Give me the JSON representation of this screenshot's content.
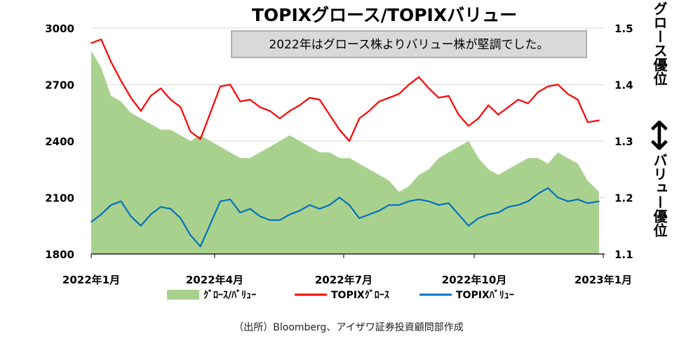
{
  "chart_data": {
    "type": "line",
    "title": "TOPIXグロース/TOPIXバリュー",
    "annotation": "2022年はグロース株よりバリュー株が堅調でした。",
    "x_tick_labels": [
      "2022年1月",
      "2022年4月",
      "2022年7月",
      "2022年10月",
      "2023年1月"
    ],
    "x_range": [
      "2022-01-04",
      "2023-01-01"
    ],
    "y_left": {
      "range": [
        1800,
        3000
      ],
      "ticks": [
        1800,
        2100,
        2400,
        2700,
        3000
      ]
    },
    "y_right": {
      "range": [
        1.1,
        1.5
      ],
      "ticks": [
        1.1,
        1.2,
        1.3,
        1.4,
        1.5
      ],
      "label_top": "グロース優位",
      "arrow": "↕",
      "label_bottom": "バリュー優位"
    },
    "grid": "horizontal",
    "legend_position": "bottom",
    "series": [
      {
        "name": "ｸﾞﾛｰｽ/ﾊﾞﾘｭｰ",
        "type": "area",
        "axis": "right",
        "color": "#a9d18e",
        "x": [
          "2022-01-04",
          "2022-01-11",
          "2022-01-18",
          "2022-01-25",
          "2022-02-01",
          "2022-02-08",
          "2022-02-15",
          "2022-02-22",
          "2022-03-01",
          "2022-03-08",
          "2022-03-15",
          "2022-03-22",
          "2022-03-29",
          "2022-04-05",
          "2022-04-12",
          "2022-04-19",
          "2022-04-26",
          "2022-05-03",
          "2022-05-10",
          "2022-05-17",
          "2022-05-24",
          "2022-05-31",
          "2022-06-07",
          "2022-06-14",
          "2022-06-21",
          "2022-06-28",
          "2022-07-05",
          "2022-07-12",
          "2022-07-19",
          "2022-07-26",
          "2022-08-02",
          "2022-08-09",
          "2022-08-16",
          "2022-08-23",
          "2022-08-30",
          "2022-09-06",
          "2022-09-13",
          "2022-09-20",
          "2022-09-27",
          "2022-10-04",
          "2022-10-11",
          "2022-10-18",
          "2022-10-25",
          "2022-11-01",
          "2022-11-08",
          "2022-11-15",
          "2022-11-22",
          "2022-11-29",
          "2022-12-06",
          "2022-12-13",
          "2022-12-20",
          "2022-12-28"
        ],
        "values": [
          1.46,
          1.43,
          1.38,
          1.37,
          1.35,
          1.34,
          1.33,
          1.32,
          1.32,
          1.31,
          1.3,
          1.31,
          1.3,
          1.29,
          1.28,
          1.27,
          1.27,
          1.28,
          1.29,
          1.3,
          1.31,
          1.3,
          1.29,
          1.28,
          1.28,
          1.27,
          1.27,
          1.26,
          1.25,
          1.24,
          1.23,
          1.21,
          1.22,
          1.24,
          1.25,
          1.27,
          1.28,
          1.29,
          1.3,
          1.27,
          1.25,
          1.24,
          1.25,
          1.26,
          1.27,
          1.27,
          1.26,
          1.28,
          1.27,
          1.26,
          1.23,
          1.21
        ]
      },
      {
        "name": "TOPIXｸﾞﾛｰｽ",
        "type": "line",
        "axis": "left",
        "color": "#ff0000",
        "x": [
          "2022-01-04",
          "2022-01-11",
          "2022-01-18",
          "2022-01-25",
          "2022-02-01",
          "2022-02-08",
          "2022-02-15",
          "2022-02-22",
          "2022-03-01",
          "2022-03-08",
          "2022-03-15",
          "2022-03-22",
          "2022-03-29",
          "2022-04-05",
          "2022-04-12",
          "2022-04-19",
          "2022-04-26",
          "2022-05-03",
          "2022-05-10",
          "2022-05-17",
          "2022-05-24",
          "2022-05-31",
          "2022-06-07",
          "2022-06-14",
          "2022-06-21",
          "2022-06-28",
          "2022-07-05",
          "2022-07-12",
          "2022-07-19",
          "2022-07-26",
          "2022-08-02",
          "2022-08-09",
          "2022-08-16",
          "2022-08-23",
          "2022-08-30",
          "2022-09-06",
          "2022-09-13",
          "2022-09-20",
          "2022-09-27",
          "2022-10-04",
          "2022-10-11",
          "2022-10-18",
          "2022-10-25",
          "2022-11-01",
          "2022-11-08",
          "2022-11-15",
          "2022-11-22",
          "2022-11-29",
          "2022-12-06",
          "2022-12-13",
          "2022-12-20",
          "2022-12-28"
        ],
        "values": [
          2920,
          2940,
          2820,
          2720,
          2630,
          2560,
          2640,
          2680,
          2620,
          2580,
          2450,
          2410,
          2550,
          2690,
          2700,
          2610,
          2620,
          2580,
          2560,
          2520,
          2560,
          2590,
          2630,
          2620,
          2540,
          2460,
          2400,
          2520,
          2560,
          2610,
          2630,
          2650,
          2700,
          2740,
          2680,
          2630,
          2640,
          2540,
          2480,
          2520,
          2590,
          2540,
          2580,
          2620,
          2600,
          2660,
          2690,
          2700,
          2650,
          2620,
          2500,
          2510
        ]
      },
      {
        "name": "TOPIXﾊﾞﾘｭｰ",
        "type": "line",
        "axis": "left",
        "color": "#0070c0",
        "x": [
          "2022-01-04",
          "2022-01-11",
          "2022-01-18",
          "2022-01-25",
          "2022-02-01",
          "2022-02-08",
          "2022-02-15",
          "2022-02-22",
          "2022-03-01",
          "2022-03-08",
          "2022-03-15",
          "2022-03-22",
          "2022-03-29",
          "2022-04-05",
          "2022-04-12",
          "2022-04-19",
          "2022-04-26",
          "2022-05-03",
          "2022-05-10",
          "2022-05-17",
          "2022-05-24",
          "2022-05-31",
          "2022-06-07",
          "2022-06-14",
          "2022-06-21",
          "2022-06-28",
          "2022-07-05",
          "2022-07-12",
          "2022-07-19",
          "2022-07-26",
          "2022-08-02",
          "2022-08-09",
          "2022-08-16",
          "2022-08-23",
          "2022-08-30",
          "2022-09-06",
          "2022-09-13",
          "2022-09-20",
          "2022-09-27",
          "2022-10-04",
          "2022-10-11",
          "2022-10-18",
          "2022-10-25",
          "2022-11-01",
          "2022-11-08",
          "2022-11-15",
          "2022-11-22",
          "2022-11-29",
          "2022-12-06",
          "2022-12-13",
          "2022-12-20",
          "2022-12-28"
        ],
        "values": [
          1970,
          2010,
          2060,
          2080,
          2000,
          1950,
          2010,
          2050,
          2040,
          1990,
          1900,
          1840,
          1960,
          2080,
          2090,
          2020,
          2040,
          2000,
          1980,
          1980,
          2010,
          2030,
          2060,
          2040,
          2060,
          2100,
          2060,
          1990,
          2010,
          2030,
          2060,
          2060,
          2080,
          2090,
          2080,
          2060,
          2070,
          2010,
          1950,
          1990,
          2010,
          2020,
          2050,
          2060,
          2080,
          2120,
          2150,
          2100,
          2080,
          2090,
          2070,
          2080
        ]
      }
    ]
  },
  "source": "（出所）Bloomberg、アイザワ証券投資顧問部作成"
}
